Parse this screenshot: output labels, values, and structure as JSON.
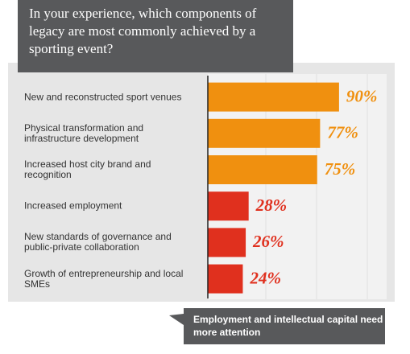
{
  "chart_data": {
    "type": "bar",
    "orientation": "horizontal",
    "title": "In your experience, which components of legacy are most commonly achieved by a sporting event?",
    "categories": [
      "New and reconstructed sport venues",
      "Physical transformation and infrastructure development",
      "Increased host city brand and recognition",
      "Increased employment",
      "New standards of governance and public-private collaboration",
      "Growth of entrepreneurship and local SMEs"
    ],
    "values": [
      90,
      77,
      75,
      28,
      26,
      24
    ],
    "value_labels": [
      "90%",
      "77%",
      "75%",
      "28%",
      "26%",
      "24%"
    ],
    "colors": [
      "#f0900f",
      "#f0900f",
      "#f0900f",
      "#e0301e",
      "#e0301e",
      "#e0301e"
    ],
    "xlim": [
      0,
      100
    ],
    "annotation": "Employment and intellectual capital need more attention"
  }
}
